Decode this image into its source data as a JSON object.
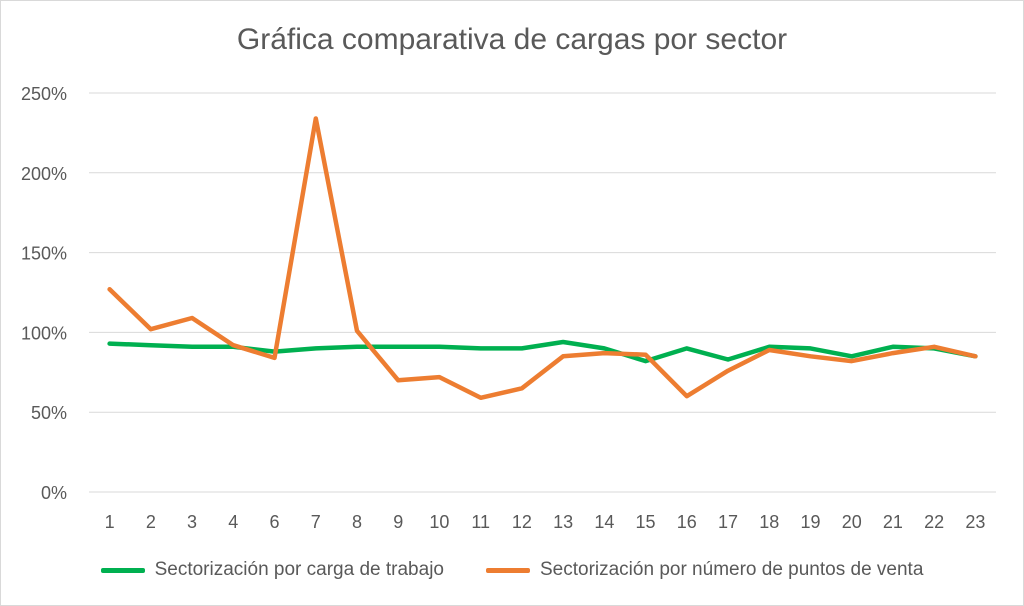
{
  "chart_data": {
    "type": "line",
    "title": "Gráfica comparativa de cargas por sector",
    "categories": [
      "1",
      "2",
      "3",
      "4",
      "6",
      "7",
      "8",
      "9",
      "10",
      "11",
      "12",
      "13",
      "14",
      "15",
      "16",
      "17",
      "18",
      "19",
      "20",
      "21",
      "22",
      "23"
    ],
    "y_ticks": [
      "0%",
      "50%",
      "100%",
      "150%",
      "200%",
      "250%"
    ],
    "ylim": [
      0,
      250
    ],
    "y_unit": "%",
    "grid": true,
    "legend_position": "bottom",
    "series": [
      {
        "name": "Sectorización por carga de trabajo",
        "color": "#00b050",
        "values": [
          93,
          92,
          91,
          91,
          88,
          90,
          91,
          91,
          91,
          90,
          90,
          94,
          90,
          82,
          90,
          83,
          91,
          90,
          85,
          91,
          90,
          85
        ]
      },
      {
        "name": "Sectorización por número de puntos de venta",
        "color": "#ed7d31",
        "values": [
          127,
          102,
          109,
          92,
          84,
          234,
          101,
          70,
          72,
          59,
          65,
          85,
          87,
          86,
          60,
          76,
          89,
          85,
          82,
          87,
          91,
          85
        ]
      }
    ]
  }
}
